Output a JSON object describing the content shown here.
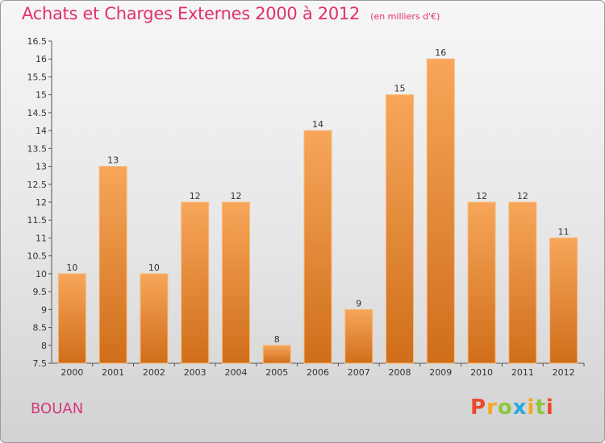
{
  "header": {
    "title": "Achats et Charges Externes 2000 à 2012",
    "subtitle": "(en milliers d'€)"
  },
  "footer": {
    "commune": "BOUAN",
    "logo": "Proxiti"
  },
  "colors": {
    "title": "#e0306a",
    "bar_top": "#f7a65a",
    "bar_bottom": "#cf6e1a",
    "commune": "#d33a7a",
    "logo_letters": [
      "#e84a2a",
      "#f5a623",
      "#8cc63f",
      "#27a9e1",
      "#f5a623",
      "#8cc63f",
      "#e84a2a"
    ]
  },
  "chart_data": {
    "type": "bar",
    "title": "Achats et Charges Externes 2000 à 2012",
    "subtitle": "(en milliers d'€)",
    "categories": [
      "2000",
      "2001",
      "2002",
      "2003",
      "2004",
      "2005",
      "2006",
      "2007",
      "2008",
      "2009",
      "2010",
      "2011",
      "2012"
    ],
    "values": [
      10,
      13,
      10,
      12,
      12,
      8,
      14,
      9,
      15,
      16,
      12,
      12,
      11
    ],
    "labels": [
      "10",
      "13",
      "10",
      "12",
      "12",
      "8",
      "14",
      "9",
      "15",
      "16",
      "12",
      "12",
      "11"
    ],
    "ylim": [
      7.5,
      16.5
    ],
    "yticks": [
      7.5,
      8,
      8.5,
      9,
      9.5,
      10,
      10.5,
      11,
      11.5,
      12,
      12.5,
      13,
      13.5,
      14,
      14.5,
      15,
      15.5,
      16,
      16.5
    ],
    "ytick_labels": [
      "7.5",
      "8",
      "8.5",
      "9",
      "9.5",
      "10",
      "10.5",
      "11",
      "11.5",
      "12",
      "12.5",
      "13",
      "13.5",
      "14",
      "14.5",
      "15",
      "15.5",
      "16",
      "16.5"
    ],
    "grid": false,
    "legend": "none"
  }
}
